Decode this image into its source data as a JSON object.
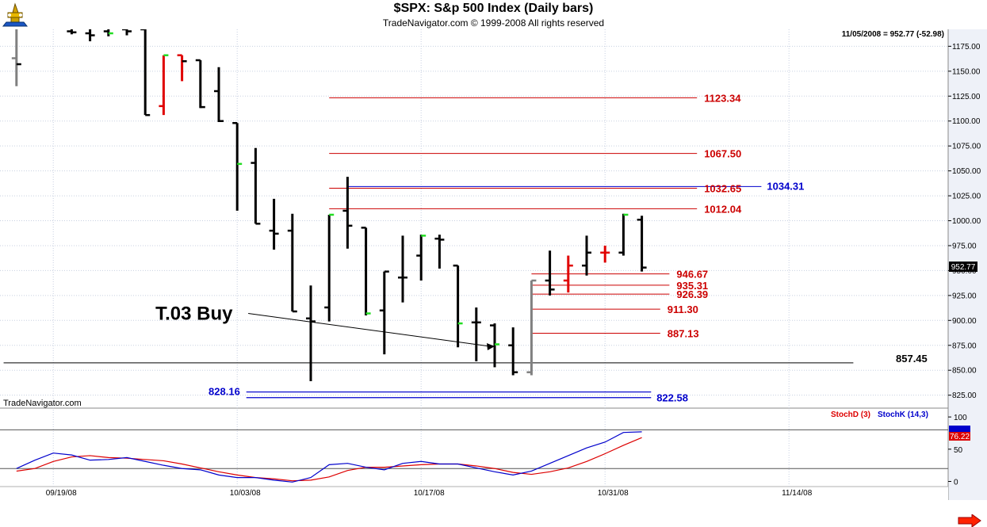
{
  "header": {
    "title": "$SPX:  S&p 500 Index  (Daily bars)",
    "subtitle": "TradeNavigator.com © 1999-2008 All rights reserved"
  },
  "readout": "11/05/2008 = 952.77 (-52.98)",
  "watermark": "TradeNavigator.com",
  "last_price_tag": "952.77",
  "colors": {
    "bar_black": "#000000",
    "bar_red": "#e00000",
    "bar_green": "#22dd22",
    "bar_gray": "#808080",
    "level_red": "#cc0000",
    "level_blue": "#0000cc",
    "stoch_d": "#dd0000",
    "stoch_k": "#0000cc",
    "grid": "#c8d0e0",
    "pane_bg": "#ffffff",
    "axis_bg": "#eef1f8",
    "nav_arrow": "#ff2200"
  },
  "chart_data": [
    {
      "type": "ohlc",
      "title": "$SPX:  S&p 500 Index  (Daily bars)",
      "ylim": [
        812,
        1192
      ],
      "y_ticks": [
        825,
        850,
        875,
        900,
        925,
        950,
        975,
        1000,
        1025,
        1050,
        1075,
        1100,
        1125,
        1150,
        1175
      ],
      "x_tick_labels": [
        {
          "label": "09/19/08",
          "slot": 1
        },
        {
          "label": "10/03/08",
          "slot": 11
        },
        {
          "label": "10/17/08",
          "slot": 21
        },
        {
          "label": "10/31/08",
          "slot": 31
        },
        {
          "label": "11/14/08",
          "slot": 41
        }
      ],
      "bars": [
        {
          "slot": -1,
          "o": 1163,
          "h": 1198,
          "l": 1135,
          "c": 1157,
          "color": "gray",
          "tick_color": "black"
        },
        {
          "slot": 2,
          "o": 1190,
          "h": 1195,
          "l": 1187,
          "c": 1189,
          "color": "black",
          "tick_color": "black"
        },
        {
          "slot": 3,
          "o": 1188,
          "h": 1192,
          "l": 1180,
          "c": 1186,
          "color": "black",
          "tick_color": "black"
        },
        {
          "slot": 4,
          "o": 1190,
          "h": 1195,
          "l": 1185,
          "c": 1188,
          "color": "black",
          "tick_color": "green"
        },
        {
          "slot": 5,
          "o": 1192,
          "h": 1198,
          "l": 1186,
          "c": 1190,
          "color": "black",
          "tick_color": "black"
        },
        {
          "slot": 6,
          "o": 1192,
          "h": 1192,
          "l": 1106,
          "c": 1106,
          "color": "black",
          "tick_color": "black"
        },
        {
          "slot": 7,
          "o": 1115,
          "h": 1166,
          "l": 1106,
          "c": 1166,
          "color": "red",
          "tick_color": "green"
        },
        {
          "slot": 8,
          "o": 1166,
          "h": 1166,
          "l": 1140,
          "c": 1160,
          "color": "red",
          "tick_color": "black"
        },
        {
          "slot": 9,
          "o": 1161,
          "h": 1161,
          "l": 1113,
          "c": 1114,
          "color": "black",
          "tick_color": "black"
        },
        {
          "slot": 10,
          "o": 1130,
          "h": 1154,
          "l": 1099,
          "c": 1100,
          "color": "black",
          "tick_color": "black"
        },
        {
          "slot": 11,
          "o": 1098,
          "h": 1098,
          "l": 1010,
          "c": 1057,
          "color": "black",
          "tick_color": "green"
        },
        {
          "slot": 12,
          "o": 1058,
          "h": 1073,
          "l": 997,
          "c": 997,
          "color": "black",
          "tick_color": "black"
        },
        {
          "slot": 13,
          "o": 990,
          "h": 1022,
          "l": 971,
          "c": 987,
          "color": "black",
          "tick_color": "black"
        },
        {
          "slot": 14,
          "o": 990,
          "h": 1007,
          "l": 909,
          "c": 909,
          "color": "black",
          "tick_color": "black"
        },
        {
          "slot": 15,
          "o": 902,
          "h": 935,
          "l": 839,
          "c": 899,
          "color": "black",
          "tick_color": "black"
        },
        {
          "slot": 16,
          "o": 913,
          "h": 1006,
          "l": 899,
          "c": 1006,
          "color": "black",
          "tick_color": "green"
        },
        {
          "slot": 17,
          "o": 1010,
          "h": 1044,
          "l": 972,
          "c": 995,
          "color": "black",
          "tick_color": "black"
        },
        {
          "slot": 18,
          "o": 993,
          "h": 993,
          "l": 905,
          "c": 907,
          "color": "black",
          "tick_color": "green"
        },
        {
          "slot": 19,
          "o": 910,
          "h": 949,
          "l": 866,
          "c": 949,
          "color": "black",
          "tick_color": "black"
        },
        {
          "slot": 20,
          "o": 943,
          "h": 985,
          "l": 918,
          "c": 943,
          "color": "black",
          "tick_color": "black"
        },
        {
          "slot": 21,
          "o": 965,
          "h": 986,
          "l": 940,
          "c": 985,
          "color": "black",
          "tick_color": "green"
        },
        {
          "slot": 22,
          "o": 982,
          "h": 986,
          "l": 952,
          "c": 981,
          "color": "black",
          "tick_color": "black"
        },
        {
          "slot": 23,
          "o": 955,
          "h": 955,
          "l": 873,
          "c": 897,
          "color": "black",
          "tick_color": "green"
        },
        {
          "slot": 24,
          "o": 898,
          "h": 913,
          "l": 859,
          "c": 898,
          "color": "black",
          "tick_color": "black"
        },
        {
          "slot": 25,
          "o": 895,
          "h": 897,
          "l": 853,
          "c": 876,
          "color": "black",
          "tick_color": "green"
        },
        {
          "slot": 26,
          "o": 875,
          "h": 893,
          "l": 845,
          "c": 848,
          "color": "black",
          "tick_color": "black"
        },
        {
          "slot": 27,
          "o": 848,
          "h": 940,
          "l": 845,
          "c": 940,
          "color": "gray",
          "tick_color": "gray"
        },
        {
          "slot": 28,
          "o": 940,
          "h": 970,
          "l": 925,
          "c": 931,
          "color": "black",
          "tick_color": "black"
        },
        {
          "slot": 29,
          "o": 940,
          "h": 965,
          "l": 928,
          "c": 955,
          "color": "red",
          "tick_color": "red"
        },
        {
          "slot": 30,
          "o": 955,
          "h": 985,
          "l": 945,
          "c": 968,
          "color": "black",
          "tick_color": "black"
        },
        {
          "slot": 31,
          "o": 968,
          "h": 975,
          "l": 958,
          "c": 968,
          "color": "red",
          "tick_color": "red"
        },
        {
          "slot": 32,
          "o": 968,
          "h": 1007,
          "l": 965,
          "c": 1006,
          "color": "black",
          "tick_color": "green"
        },
        {
          "slot": 33,
          "o": 1001,
          "h": 1005,
          "l": 949,
          "c": 953,
          "color": "black",
          "tick_color": "black"
        }
      ],
      "levels": [
        {
          "value": 1123.34,
          "label": "1123.34",
          "color": "red",
          "x0_slot": 16,
          "x1_slot": 36
        },
        {
          "value": 1067.5,
          "label": "1067.50",
          "color": "red",
          "x0_slot": 16,
          "x1_slot": 36
        },
        {
          "value": 1034.31,
          "label": "1034.31",
          "color": "blue",
          "x0_slot": 17,
          "x1_slot": 39.5
        },
        {
          "value": 1032.65,
          "label": "1032.65",
          "color": "red",
          "x0_slot": 16,
          "x1_slot": 36
        },
        {
          "value": 1012.04,
          "label": "1012.04",
          "color": "red",
          "x0_slot": 16,
          "x1_slot": 36
        },
        {
          "value": 946.67,
          "label": "946.67",
          "color": "red",
          "x0_slot": 27,
          "x1_slot": 34.5
        },
        {
          "value": 935.31,
          "label": "935.31",
          "color": "red",
          "x0_slot": 27,
          "x1_slot": 34.5
        },
        {
          "value": 926.39,
          "label": "926.39",
          "color": "red",
          "x0_slot": 27,
          "x1_slot": 34.5
        },
        {
          "value": 911.3,
          "label": "911.30",
          "color": "red",
          "x0_slot": 27,
          "x1_slot": 34
        },
        {
          "value": 887.13,
          "label": "887.13",
          "color": "red",
          "x0_slot": 27,
          "x1_slot": 34
        },
        {
          "value": 857.45,
          "label": "857.45",
          "color": "black",
          "x0_slot": -1.7,
          "x1_slot": 44.5
        },
        {
          "value": 828.16,
          "label": "828.16",
          "color": "blue",
          "x0_slot": 11.5,
          "x1_slot": 33.5
        },
        {
          "value": 822.58,
          "label": "822.58",
          "color": "blue",
          "x0_slot": 11.5,
          "x1_slot": 33.5
        }
      ],
      "annotations": [
        {
          "text": "T.03 Buy",
          "from_slot": 11.6,
          "from_value": 907,
          "to_slot": 25,
          "to_value": 874
        }
      ]
    },
    {
      "type": "line",
      "ylim": [
        -8,
        110
      ],
      "y_ticks": [
        0,
        50,
        100
      ],
      "reference_lines": [
        80,
        20
      ],
      "legend": [
        {
          "name": "StochD (3)",
          "color": "red"
        },
        {
          "name": "StochK (14,3)",
          "color": "blue"
        }
      ],
      "value_tag": "76.22",
      "series": [
        {
          "name": "StochD (3)",
          "color": "red",
          "values": [
            [
              -1,
              16
            ],
            [
              0,
              20
            ],
            [
              1,
              31
            ],
            [
              2,
              38
            ],
            [
              3,
              40
            ],
            [
              4,
              37
            ],
            [
              5,
              36
            ],
            [
              6,
              34
            ],
            [
              7,
              32
            ],
            [
              8,
              27
            ],
            [
              9,
              21
            ],
            [
              10,
              15
            ],
            [
              11,
              10
            ],
            [
              12,
              6
            ],
            [
              13,
              4
            ],
            [
              14,
              1
            ],
            [
              15,
              2
            ],
            [
              16,
              7
            ],
            [
              17,
              17
            ],
            [
              18,
              22
            ],
            [
              19,
              22
            ],
            [
              20,
              24
            ],
            [
              21,
              26
            ],
            [
              22,
              27
            ],
            [
              23,
              27
            ],
            [
              24,
              24
            ],
            [
              25,
              20
            ],
            [
              26,
              14
            ],
            [
              27,
              11
            ],
            [
              28,
              15
            ],
            [
              29,
              21
            ],
            [
              30,
              31
            ],
            [
              31,
              43
            ],
            [
              32,
              56
            ],
            [
              33,
              68
            ]
          ]
        },
        {
          "name": "StochK (14,3)",
          "color": "blue",
          "values": [
            [
              -1,
              20
            ],
            [
              0,
              33
            ],
            [
              1,
              44
            ],
            [
              2,
              41
            ],
            [
              3,
              33
            ],
            [
              4,
              34
            ],
            [
              5,
              37
            ],
            [
              6,
              31
            ],
            [
              7,
              25
            ],
            [
              8,
              20
            ],
            [
              9,
              18
            ],
            [
              10,
              10
            ],
            [
              11,
              6
            ],
            [
              12,
              6
            ],
            [
              13,
              2
            ],
            [
              14,
              -1
            ],
            [
              15,
              6
            ],
            [
              16,
              26
            ],
            [
              17,
              28
            ],
            [
              18,
              22
            ],
            [
              19,
              18
            ],
            [
              20,
              28
            ],
            [
              21,
              31
            ],
            [
              22,
              27
            ],
            [
              23,
              27
            ],
            [
              24,
              21
            ],
            [
              25,
              15
            ],
            [
              26,
              10
            ],
            [
              27,
              16
            ],
            [
              28,
              28
            ],
            [
              29,
              40
            ],
            [
              30,
              52
            ],
            [
              31,
              61
            ],
            [
              32,
              76
            ],
            [
              33,
              77
            ]
          ]
        }
      ]
    }
  ]
}
